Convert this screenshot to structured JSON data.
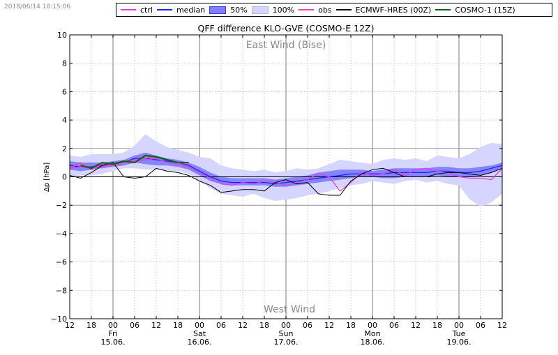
{
  "timestamp": "2018/06/14 18:15:06",
  "legend": [
    {
      "label": "ctrl",
      "kind": "line",
      "color": "#e040e0"
    },
    {
      "label": "median",
      "kind": "line",
      "color": "#2020ff"
    },
    {
      "label": "50%",
      "kind": "box",
      "color": "#7f7fff",
      "border": "#3d3dd6"
    },
    {
      "label": "100%",
      "kind": "box",
      "color": "#d5d5ff",
      "border": "#b5b5ee"
    },
    {
      "label": "obs",
      "kind": "line",
      "color": "#ff40a0"
    },
    {
      "label": "ECMWF-HRES (00Z)",
      "kind": "line",
      "color": "#000000"
    },
    {
      "label": "COSMO-1 (15Z)",
      "kind": "line",
      "color": "#006400"
    }
  ],
  "chart_data": {
    "type": "line",
    "title": "QFF difference KLO-GVE (COSMO-E 12Z)",
    "ylabel": "Δp [hPa]",
    "xlabel": "",
    "ylim": [
      -10,
      10
    ],
    "xlim_hours": [
      0,
      120
    ],
    "yticks": [
      "−10",
      "−8",
      "−6",
      "−4",
      "−2",
      "0",
      "2",
      "4",
      "6",
      "8",
      "10"
    ],
    "xticks": [
      {
        "h": 0,
        "hour": "12",
        "day": "",
        "date": ""
      },
      {
        "h": 6,
        "hour": "18",
        "day": "",
        "date": ""
      },
      {
        "h": 12,
        "hour": "00",
        "day": "Fri",
        "date": "15.06."
      },
      {
        "h": 18,
        "hour": "06",
        "day": "",
        "date": ""
      },
      {
        "h": 24,
        "hour": "12",
        "day": "",
        "date": ""
      },
      {
        "h": 30,
        "hour": "18",
        "day": "",
        "date": ""
      },
      {
        "h": 36,
        "hour": "00",
        "day": "Sat",
        "date": "16.06."
      },
      {
        "h": 42,
        "hour": "06",
        "day": "",
        "date": ""
      },
      {
        "h": 48,
        "hour": "12",
        "day": "",
        "date": ""
      },
      {
        "h": 54,
        "hour": "18",
        "day": "",
        "date": ""
      },
      {
        "h": 60,
        "hour": "00",
        "day": "Sun",
        "date": "17.06."
      },
      {
        "h": 66,
        "hour": "06",
        "day": "",
        "date": ""
      },
      {
        "h": 72,
        "hour": "12",
        "day": "",
        "date": ""
      },
      {
        "h": 78,
        "hour": "18",
        "day": "",
        "date": ""
      },
      {
        "h": 84,
        "hour": "00",
        "day": "Mon",
        "date": "18.06."
      },
      {
        "h": 90,
        "hour": "06",
        "day": "",
        "date": ""
      },
      {
        "h": 96,
        "hour": "12",
        "day": "",
        "date": ""
      },
      {
        "h": 102,
        "hour": "18",
        "day": "",
        "date": ""
      },
      {
        "h": 108,
        "hour": "00",
        "day": "Tue",
        "date": "19.06."
      },
      {
        "h": 114,
        "hour": "06",
        "day": "",
        "date": ""
      },
      {
        "h": 120,
        "hour": "12",
        "day": "",
        "date": ""
      }
    ],
    "annotations": {
      "top": "East Wind (Bise)",
      "bottom": "West Wind"
    },
    "reference_lines": [
      2,
      0,
      -2
    ],
    "grid": true,
    "legend_position": "top",
    "x_hours": [
      0,
      3,
      6,
      9,
      12,
      15,
      18,
      21,
      24,
      27,
      30,
      33,
      36,
      39,
      42,
      45,
      48,
      51,
      54,
      57,
      60,
      63,
      66,
      69,
      72,
      75,
      78,
      81,
      84,
      87,
      90,
      93,
      96,
      99,
      102,
      105,
      108,
      111,
      114,
      117,
      120
    ],
    "series": [
      {
        "name": "100%",
        "kind": "band",
        "color": "#d5d5ff",
        "lower": [
          0.0,
          0.1,
          0.1,
          0.2,
          0.4,
          0.6,
          0.6,
          0.5,
          0.5,
          0.4,
          0.4,
          0.2,
          -0.3,
          -0.8,
          -1.2,
          -1.3,
          -1.4,
          -1.2,
          -1.5,
          -1.7,
          -1.6,
          -1.5,
          -1.3,
          -1.2,
          -1.0,
          -0.8,
          -0.6,
          -0.5,
          -0.3,
          -0.4,
          -0.5,
          -0.3,
          -0.2,
          -0.4,
          -0.3,
          -0.5,
          -0.6,
          -1.6,
          -2.1,
          -1.8,
          -1.2
        ],
        "upper": [
          1.5,
          1.4,
          1.6,
          1.6,
          1.6,
          1.7,
          2.2,
          3.0,
          2.5,
          2.1,
          1.9,
          1.7,
          1.4,
          1.3,
          0.8,
          0.6,
          0.5,
          0.4,
          0.5,
          0.3,
          0.4,
          0.6,
          0.5,
          0.6,
          0.9,
          1.2,
          1.1,
          1.0,
          0.9,
          1.2,
          1.3,
          1.2,
          1.3,
          1.1,
          1.5,
          1.4,
          1.3,
          1.6,
          2.1,
          2.4,
          2.3
        ]
      },
      {
        "name": "50%",
        "kind": "band",
        "color": "#7f7fff",
        "lower": [
          0.5,
          0.4,
          0.5,
          0.6,
          0.7,
          0.8,
          1.0,
          0.9,
          0.8,
          0.8,
          0.7,
          0.5,
          0.1,
          -0.3,
          -0.5,
          -0.6,
          -0.6,
          -0.6,
          -0.6,
          -0.7,
          -0.7,
          -0.6,
          -0.5,
          -0.4,
          -0.3,
          -0.2,
          -0.1,
          0.0,
          0.0,
          -0.1,
          -0.1,
          0.0,
          0.0,
          0.0,
          0.1,
          0.0,
          0.0,
          0.0,
          0.1,
          0.3,
          0.6
        ],
        "upper": [
          1.1,
          1.0,
          1.0,
          1.0,
          1.1,
          1.2,
          1.5,
          1.7,
          1.5,
          1.3,
          1.2,
          1.0,
          0.7,
          0.3,
          0.0,
          -0.1,
          -0.1,
          -0.1,
          -0.1,
          -0.2,
          -0.1,
          0.0,
          0.1,
          0.3,
          0.4,
          0.5,
          0.5,
          0.5,
          0.4,
          0.5,
          0.6,
          0.6,
          0.6,
          0.6,
          0.7,
          0.7,
          0.6,
          0.6,
          0.7,
          0.8,
          1.0
        ]
      },
      {
        "name": "median",
        "kind": "line",
        "color": "#2020ff",
        "values": [
          0.8,
          0.7,
          0.7,
          0.8,
          0.9,
          1.0,
          1.3,
          1.3,
          1.2,
          1.1,
          1.0,
          0.8,
          0.4,
          0.0,
          -0.3,
          -0.4,
          -0.4,
          -0.4,
          -0.4,
          -0.5,
          -0.4,
          -0.3,
          -0.2,
          -0.1,
          0.0,
          0.1,
          0.2,
          0.2,
          0.2,
          0.2,
          0.3,
          0.3,
          0.3,
          0.3,
          0.4,
          0.4,
          0.3,
          0.3,
          0.4,
          0.6,
          0.8
        ]
      },
      {
        "name": "ctrl",
        "kind": "line",
        "color": "#e040e0",
        "values": [
          0.6,
          0.7,
          0.6,
          0.7,
          0.8,
          1.0,
          1.1,
          1.2,
          1.3,
          1.0,
          0.9,
          0.7,
          0.3,
          -0.1,
          -0.5,
          -0.6,
          -0.4,
          -0.5,
          -0.3,
          -0.4,
          -0.6,
          -0.4,
          -0.2,
          0.2,
          0.0,
          -1.0,
          -0.4,
          0.3,
          0.1,
          0.2,
          0.5,
          0.1,
          0.5,
          0.6,
          0.4,
          0.3,
          0.0,
          -0.1,
          -0.1,
          -0.2,
          0.6
        ]
      },
      {
        "name": "obs",
        "kind": "line",
        "color": "#ff40a0",
        "values": [
          0.6,
          1.0,
          0.5,
          0.9,
          0.8,
          1.0,
          1.2,
          1.3,
          1.4,
          1.2,
          1.0,
          0.7
        ]
      },
      {
        "name": "ECMWF-HRES (00Z)",
        "kind": "line",
        "color": "#000000",
        "values": [
          0.1,
          -0.1,
          0.3,
          0.8,
          1.0,
          0.0,
          -0.1,
          0.0,
          0.6,
          0.4,
          0.3,
          0.1,
          -0.3,
          -0.6,
          -1.1,
          -1.0,
          -0.9,
          -0.9,
          -1.0,
          -0.4,
          -0.2,
          -0.5,
          -0.4,
          -1.2,
          -1.3,
          -1.3,
          -0.3,
          0.2,
          0.5,
          0.6,
          0.3,
          0.0,
          0.0,
          0.0,
          0.2,
          0.3,
          0.3,
          0.2,
          0.1,
          0.3,
          0.6
        ]
      },
      {
        "name": "COSMO-1 (15Z)",
        "kind": "line",
        "color": "#006400",
        "x_offset_hours": 3,
        "values": [
          0.8,
          0.6,
          1.0,
          0.9,
          1.1,
          1.0,
          1.5,
          1.4,
          1.2,
          1.0,
          1.0
        ]
      }
    ]
  }
}
